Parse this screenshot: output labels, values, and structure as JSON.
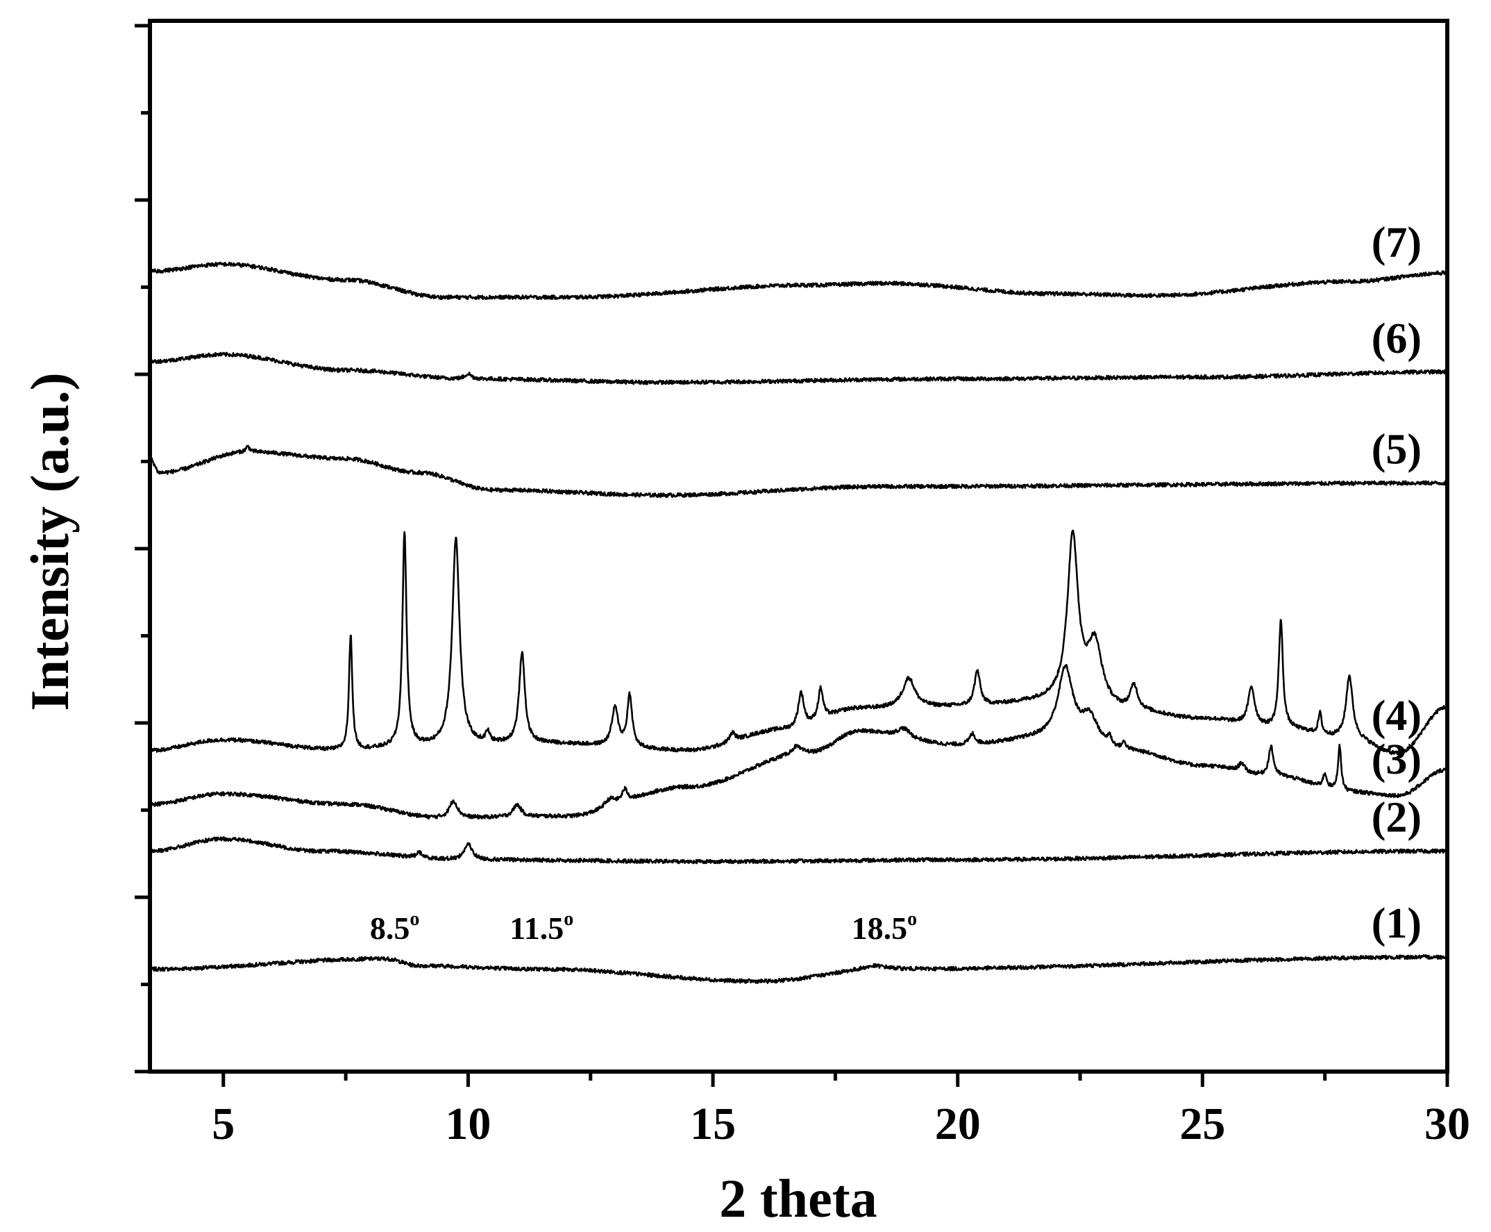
{
  "chart_data": {
    "type": "line",
    "xlabel": "2 theta",
    "ylabel": "Intensity (a.u.)",
    "xlim": [
      3.5,
      30
    ],
    "x_ticks": [
      5,
      10,
      15,
      20,
      25,
      30
    ],
    "y_tick_labels_shown": false,
    "grid": false,
    "legend": "none",
    "line_color": "#000000",
    "annotations": [
      {
        "text": "8.5",
        "degree_mark": "o",
        "x": 8.5
      },
      {
        "text": "11.5",
        "degree_mark": "o",
        "x": 11.5
      },
      {
        "text": "18.5",
        "degree_mark": "o",
        "x": 18.5
      }
    ],
    "series": [
      {
        "label": "(1)",
        "baseline": 0.59,
        "shape": [
          [
            3.5,
            0.0
          ],
          [
            8.3,
            0.06
          ],
          [
            9.0,
            0.02
          ],
          [
            11.5,
            0.0
          ],
          [
            16.0,
            -0.07
          ],
          [
            18.5,
            0.0
          ],
          [
            30,
            0.07
          ]
        ],
        "peaks": [
          [
            18.3,
            0.02,
            0.3
          ]
        ]
      },
      {
        "label": "(2)",
        "baseline": 1.27,
        "shape": [
          [
            3.5,
            0.0
          ],
          [
            5.0,
            0.07
          ],
          [
            7.0,
            0.0
          ],
          [
            10,
            -0.05
          ],
          [
            15,
            -0.06
          ],
          [
            20,
            -0.05
          ],
          [
            30,
            0.0
          ]
        ],
        "peaks": [
          [
            10.0,
            0.09,
            0.1
          ],
          [
            9.0,
            0.03,
            0.07
          ]
        ]
      },
      {
        "label": "(3)",
        "baseline": 1.54,
        "shape": [
          [
            3.5,
            0.0
          ],
          [
            5.0,
            0.06
          ],
          [
            7.5,
            0.0
          ],
          [
            9.5,
            -0.08
          ],
          [
            12.0,
            -0.07
          ],
          [
            14.5,
            0.1
          ],
          [
            17.0,
            0.3
          ],
          [
            18.0,
            0.42
          ],
          [
            20.0,
            0.34
          ],
          [
            22.0,
            0.38
          ],
          [
            23.5,
            0.3
          ],
          [
            25.0,
            0.22
          ],
          [
            26.5,
            0.16
          ],
          [
            28.0,
            0.07
          ],
          [
            29.0,
            0.05
          ],
          [
            30,
            0.2
          ]
        ],
        "peaks": [
          [
            9.7,
            0.1,
            0.1
          ],
          [
            11.0,
            0.07,
            0.1
          ],
          [
            12.9,
            0.05,
            0.15
          ],
          [
            13.2,
            0.07,
            0.07
          ],
          [
            16.7,
            0.04,
            0.1
          ],
          [
            18.9,
            0.05,
            0.15
          ],
          [
            20.3,
            0.06,
            0.07
          ],
          [
            22.2,
            0.4,
            0.18
          ],
          [
            22.7,
            0.15,
            0.2
          ],
          [
            23.1,
            0.05,
            0.05
          ],
          [
            23.4,
            0.04,
            0.05
          ],
          [
            25.8,
            0.05,
            0.07
          ],
          [
            26.4,
            0.17,
            0.06
          ],
          [
            27.5,
            0.08,
            0.05
          ],
          [
            27.8,
            0.26,
            0.04
          ]
        ]
      },
      {
        "label": "(4)",
        "baseline": 1.85,
        "shape": [
          [
            3.5,
            0.0
          ],
          [
            5.0,
            0.06
          ],
          [
            7.5,
            0.0
          ],
          [
            9.0,
            0.02
          ],
          [
            11.5,
            0.04
          ],
          [
            14.5,
            0.0
          ],
          [
            16.5,
            0.12
          ],
          [
            18.0,
            0.24
          ],
          [
            20.0,
            0.25
          ],
          [
            22.0,
            0.28
          ],
          [
            23.5,
            0.22
          ],
          [
            25.0,
            0.18
          ],
          [
            26.5,
            0.13
          ],
          [
            28.0,
            0.07
          ],
          [
            29.0,
            -0.02
          ],
          [
            30,
            0.25
          ]
        ],
        "peaks": [
          [
            7.6,
            0.67,
            0.04
          ],
          [
            8.7,
            1.24,
            0.05
          ],
          [
            9.75,
            1.2,
            0.09
          ],
          [
            10.4,
            0.06,
            0.05
          ],
          [
            11.1,
            0.52,
            0.07
          ],
          [
            13.0,
            0.22,
            0.08
          ],
          [
            13.3,
            0.3,
            0.06
          ],
          [
            15.4,
            0.05,
            0.07
          ],
          [
            16.8,
            0.2,
            0.07
          ],
          [
            17.2,
            0.18,
            0.06
          ],
          [
            19.0,
            0.17,
            0.15
          ],
          [
            20.4,
            0.2,
            0.07
          ],
          [
            22.35,
            0.95,
            0.13
          ],
          [
            22.8,
            0.35,
            0.18
          ],
          [
            23.6,
            0.14,
            0.09
          ],
          [
            26.0,
            0.22,
            0.08
          ],
          [
            26.6,
            0.62,
            0.05
          ],
          [
            27.4,
            0.12,
            0.04
          ],
          [
            28.0,
            0.36,
            0.08
          ]
        ]
      },
      {
        "label": "(5)",
        "baseline": 3.47,
        "shape": [
          [
            3.5,
            0.06
          ],
          [
            3.7,
            -0.02
          ],
          [
            5.5,
            0.1
          ],
          [
            7.5,
            0.06
          ],
          [
            9.0,
            -0.02
          ],
          [
            10.5,
            -0.12
          ],
          [
            14,
            -0.15
          ],
          [
            18.5,
            -0.1
          ],
          [
            30,
            -0.08
          ]
        ],
        "peaks": [
          [
            5.5,
            0.03,
            0.05
          ]
        ]
      },
      {
        "label": "(6)",
        "baseline": 4.09,
        "shape": [
          [
            3.5,
            0.0
          ],
          [
            5.0,
            0.04
          ],
          [
            7.5,
            -0.05
          ],
          [
            10,
            -0.1
          ],
          [
            14,
            -0.12
          ],
          [
            20,
            -0.1
          ],
          [
            25,
            -0.09
          ],
          [
            30,
            -0.06
          ]
        ],
        "peaks": [
          [
            10.0,
            0.03,
            0.08
          ]
        ]
      },
      {
        "label": "(7)",
        "baseline": 4.63,
        "shape": [
          [
            3.5,
            -0.02
          ],
          [
            5.0,
            0.02
          ],
          [
            7.5,
            -0.07
          ],
          [
            9.5,
            -0.17
          ],
          [
            12,
            -0.17
          ],
          [
            17,
            -0.1
          ],
          [
            18.5,
            -0.09
          ],
          [
            22,
            -0.15
          ],
          [
            24,
            -0.16
          ],
          [
            28,
            -0.08
          ],
          [
            30,
            -0.03
          ]
        ],
        "peaks": []
      }
    ]
  }
}
